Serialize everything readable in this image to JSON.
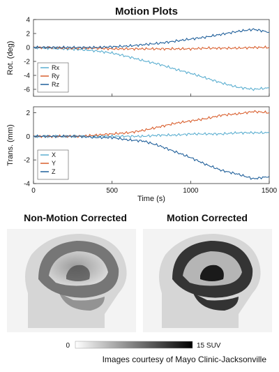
{
  "title": "Motion Plots",
  "chart_data": [
    {
      "type": "line",
      "ylabel": "Rot. (deg)",
      "xlim": [
        0,
        1500
      ],
      "ylim": [
        -7,
        4
      ],
      "yticks": [
        4,
        2,
        0,
        -2,
        -4,
        -6
      ],
      "grid": false,
      "legend": "bottom-left",
      "series": [
        {
          "name": "Rx",
          "color": "#5aaed0",
          "x": [
            0,
            100,
            200,
            300,
            400,
            500,
            600,
            700,
            800,
            900,
            1000,
            1100,
            1200,
            1300,
            1400,
            1500
          ],
          "y": [
            0,
            -0.1,
            -0.2,
            -0.3,
            -0.5,
            -0.8,
            -1.3,
            -1.9,
            -2.4,
            -3.1,
            -3.7,
            -4.4,
            -5.1,
            -5.7,
            -6.0,
            -5.8
          ]
        },
        {
          "name": "Ry",
          "color": "#d95f2e",
          "x": [
            0,
            100,
            200,
            300,
            400,
            500,
            600,
            700,
            800,
            900,
            1000,
            1100,
            1200,
            1300,
            1400,
            1500
          ],
          "y": [
            0,
            0,
            -0.1,
            -0.1,
            -0.1,
            -0.2,
            -0.2,
            -0.2,
            -0.2,
            -0.2,
            -0.2,
            -0.1,
            -0.1,
            -0.1,
            0,
            0
          ]
        },
        {
          "name": "Rz",
          "color": "#1f5f9a",
          "x": [
            0,
            100,
            200,
            300,
            400,
            500,
            600,
            700,
            800,
            900,
            1000,
            1100,
            1200,
            1300,
            1400,
            1500
          ],
          "y": [
            0,
            0,
            0,
            0,
            0,
            0.1,
            0.2,
            0.4,
            0.6,
            0.9,
            1.2,
            1.5,
            1.9,
            2.3,
            2.6,
            2.2
          ]
        }
      ]
    },
    {
      "type": "line",
      "ylabel": "Trans. (mm)",
      "xlabel": "Time (s)",
      "xlim": [
        0,
        1500
      ],
      "ylim": [
        -4,
        2.5
      ],
      "xticks": [
        0,
        500,
        1000,
        1500
      ],
      "yticks": [
        2,
        0,
        -2,
        -4
      ],
      "grid": false,
      "legend": "bottom-left",
      "series": [
        {
          "name": "X",
          "color": "#5aaed0",
          "x": [
            0,
            100,
            200,
            300,
            400,
            500,
            600,
            700,
            800,
            900,
            1000,
            1100,
            1200,
            1300,
            1400,
            1500
          ],
          "y": [
            0,
            0,
            0,
            0,
            0,
            0,
            0,
            0,
            0.1,
            0.1,
            0.2,
            0.2,
            0.2,
            0.3,
            0.3,
            0.3
          ]
        },
        {
          "name": "Y",
          "color": "#d95f2e",
          "x": [
            0,
            100,
            200,
            300,
            400,
            500,
            600,
            700,
            800,
            900,
            1000,
            1100,
            1200,
            1300,
            1400,
            1500
          ],
          "y": [
            0,
            0,
            0,
            0,
            0.1,
            0.2,
            0.3,
            0.5,
            0.8,
            1.1,
            1.3,
            1.5,
            1.8,
            1.9,
            2.1,
            2.0
          ]
        },
        {
          "name": "Z",
          "color": "#1f5f9a",
          "x": [
            0,
            100,
            200,
            300,
            400,
            500,
            600,
            700,
            800,
            900,
            1000,
            1100,
            1200,
            1300,
            1400,
            1500
          ],
          "y": [
            0,
            0,
            0,
            0,
            -0.1,
            -0.1,
            -0.3,
            -0.4,
            -0.8,
            -1.3,
            -1.8,
            -2.4,
            -2.9,
            -3.2,
            -3.6,
            -3.4
          ]
        }
      ]
    }
  ],
  "images": {
    "left_title": "Non-Motion Corrected",
    "right_title": "Motion Corrected"
  },
  "colorbar": {
    "min_label": "0",
    "max_label": "15 SUV"
  },
  "caption": "Images courtesy of Mayo Clinic-Jacksonville"
}
